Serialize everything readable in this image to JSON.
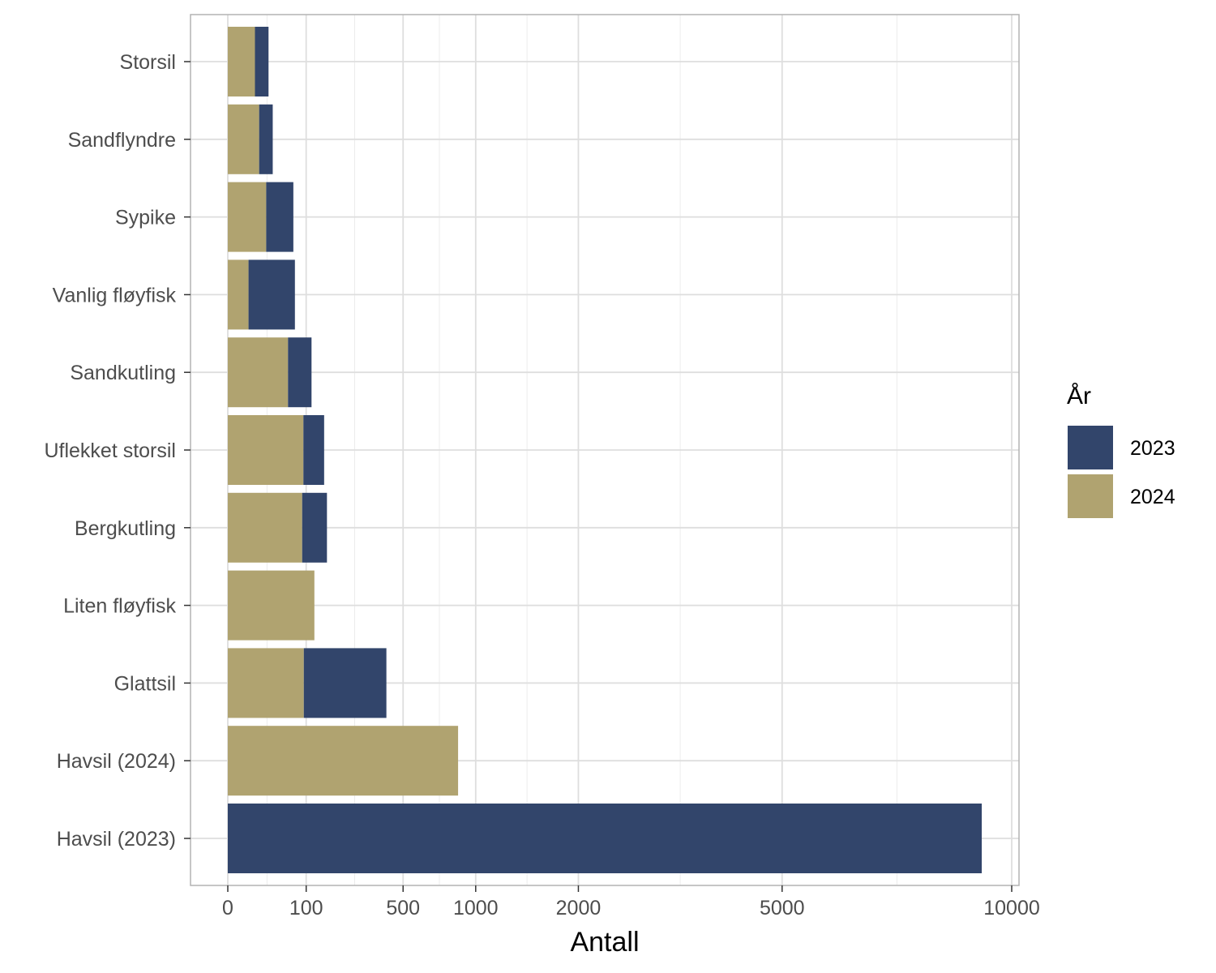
{
  "chart_data": {
    "type": "bar",
    "orientation": "horizontal",
    "stacked": true,
    "x_scale": "sqrt",
    "xlabel": "Antall",
    "ylabel": "",
    "xlim": [
      0,
      10000
    ],
    "x_ticks": [
      0,
      100,
      500,
      1000,
      2000,
      5000,
      10000
    ],
    "x_tick_labels": [
      "0",
      "100",
      "500",
      "1000",
      "2000",
      "5000",
      "10000"
    ],
    "grid": true,
    "categories": [
      "Storsil",
      "Sandflyndre",
      "Sypike",
      "Vanlig fløyfisk",
      "Sandkutling",
      "Uflekket storsil",
      "Bergkutling",
      "Liten fløyfisk",
      "Glattsil",
      "Havsil (2024)",
      "Havsil (2023)"
    ],
    "series": [
      {
        "name": "2023",
        "color": "#32456b",
        "values": [
          3,
          3,
          12,
          35,
          9,
          7,
          10,
          0,
          111,
          0,
          9250
        ]
      },
      {
        "name": "2024",
        "color": "#b0a370",
        "values": [
          12,
          16,
          24,
          7,
          59,
          93,
          90,
          122,
          94,
          863,
          0
        ]
      }
    ],
    "legend": {
      "title": "År",
      "position": "right",
      "entries": [
        "2023",
        "2024"
      ]
    }
  }
}
